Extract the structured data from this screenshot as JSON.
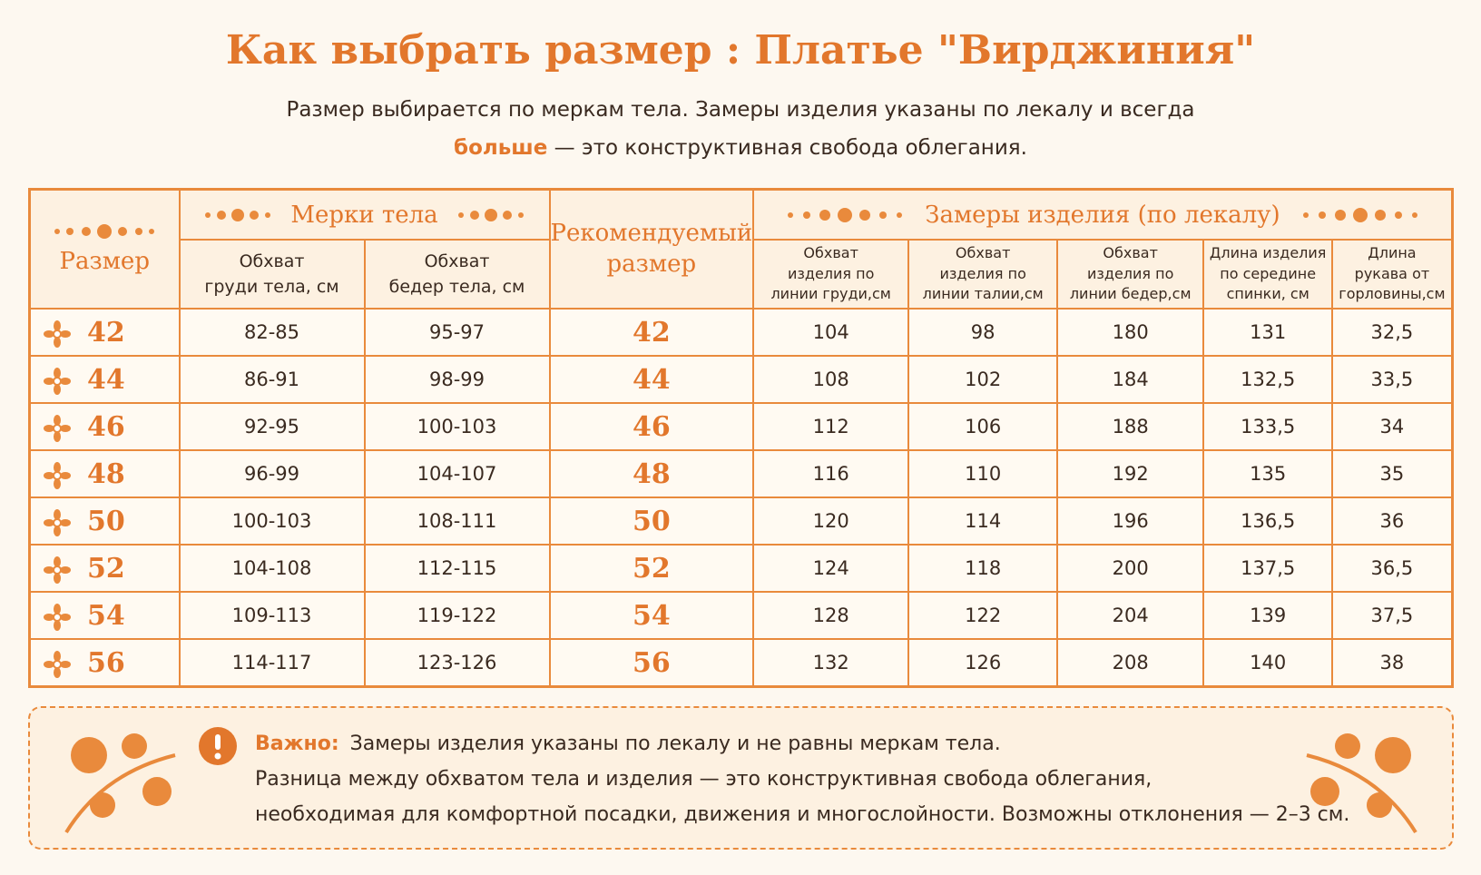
{
  "header": {
    "title": "Как выбрать размер :  Платье \"Вирджиния\"",
    "subtitle_line1": "Размер выбирается по меркам тела. Замеры изделия указаны по лекалу и всегда",
    "subtitle_bold": "больше",
    "subtitle_rest": " — это конструктивная свобода облегания."
  },
  "table": {
    "col_size": "Размер",
    "group_body": "Мерки тела",
    "body_cols": [
      "Обхват\nгруди тела, см",
      "Обхват\nбедер тела, см"
    ],
    "col_recommended": "Рекомендуемый\nразмер",
    "group_garment": "Замеры изделия (по лекалу)",
    "garment_cols": [
      "Обхват\nизделия по\nлинии груди,см",
      "Обхват\nизделия по\nлинии талии,см",
      "Обхват\nизделия по\nлинии бедер,см",
      "Длина изделия\nпо середине\nспинки, см",
      "Длина\nрукава от\nгорловины,см"
    ],
    "rows": [
      [
        "42",
        "82-85",
        "95-97",
        "42",
        "104",
        "98",
        "180",
        "131",
        "32,5"
      ],
      [
        "44",
        "86-91",
        "98-99",
        "44",
        "108",
        "102",
        "184",
        "132,5",
        "33,5"
      ],
      [
        "46",
        "92-95",
        "100-103",
        "46",
        "112",
        "106",
        "188",
        "133,5",
        "34"
      ],
      [
        "48",
        "96-99",
        "104-107",
        "48",
        "116",
        "110",
        "192",
        "135",
        "35"
      ],
      [
        "50",
        "100-103",
        "108-111",
        "50",
        "120",
        "114",
        "196",
        "136,5",
        "36"
      ],
      [
        "52",
        "104-108",
        "112-115",
        "52",
        "124",
        "118",
        "200",
        "137,5",
        "36,5"
      ],
      [
        "54",
        "109-113",
        "119-122",
        "54",
        "128",
        "122",
        "204",
        "139",
        "37,5"
      ],
      [
        "56",
        "114-117",
        "123-126",
        "56",
        "132",
        "126",
        "208",
        "140",
        "38"
      ]
    ]
  },
  "note": {
    "label": "Важно:",
    "lines": [
      "Замеры изделия указаны по лекалу и не равны меркам тела.",
      "Разница между обхватом тела и изделия — это конструктивная свобода облегания,",
      "необходимая для комфортной посадки, движения и многослойности. Возможны отклонения — 2–3 см."
    ]
  }
}
